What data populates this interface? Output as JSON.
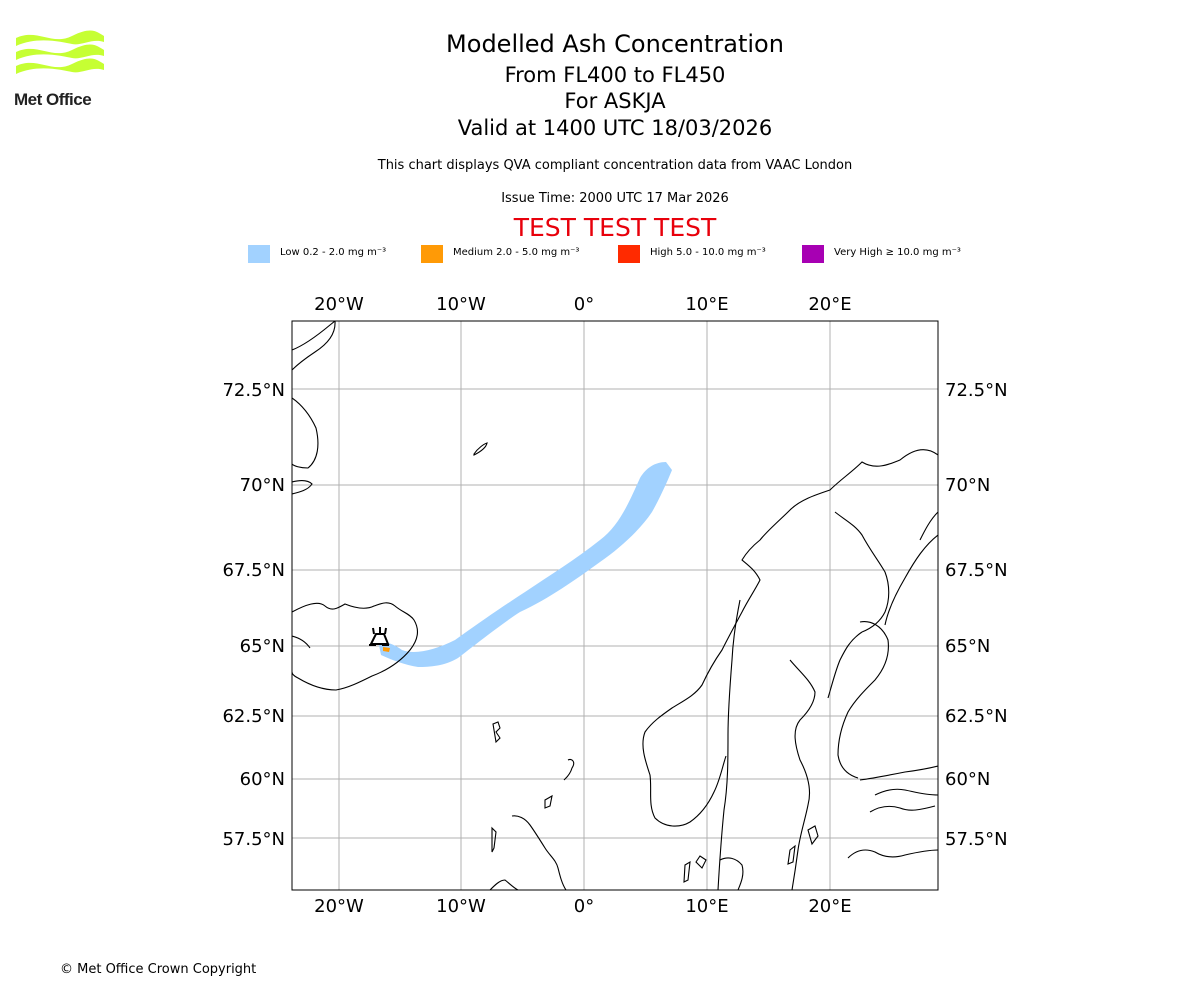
{
  "logo": {
    "name": "Met Office"
  },
  "title": {
    "main": "Modelled Ash Concentration",
    "levels": "From FL400 to FL450",
    "volcano": "For ASKJA",
    "valid": "Valid at 1400 UTC 18/03/2026"
  },
  "description": "This chart displays QVA compliant concentration data from VAAC London",
  "issue_time": "Issue Time: 2000 UTC 17 Mar 2026",
  "test_banner": "TEST TEST TEST",
  "legend": [
    {
      "label": "Low 0.2 - 2.0 mg m⁻³",
      "color": "#a2d2ff"
    },
    {
      "label": "Medium 2.0 - 5.0 mg m⁻³",
      "color": "#ff9a06"
    },
    {
      "label": "High 5.0 - 10.0 mg m⁻³",
      "color": "#ff2a00"
    },
    {
      "label": "Very High  ≥  10.0 mg m⁻³",
      "color": "#a700b3"
    }
  ],
  "map": {
    "lon_range": [
      -24,
      28.5
    ],
    "lat_ticks": [
      "72.5°N",
      "70°N",
      "67.5°N",
      "65°N",
      "62.5°N",
      "60°N",
      "57.5°N"
    ],
    "lon_ticks": [
      "20°W",
      "10°W",
      "0°",
      "10°E",
      "20°E"
    ]
  },
  "footer": "© Met Office Crown Copyright"
}
